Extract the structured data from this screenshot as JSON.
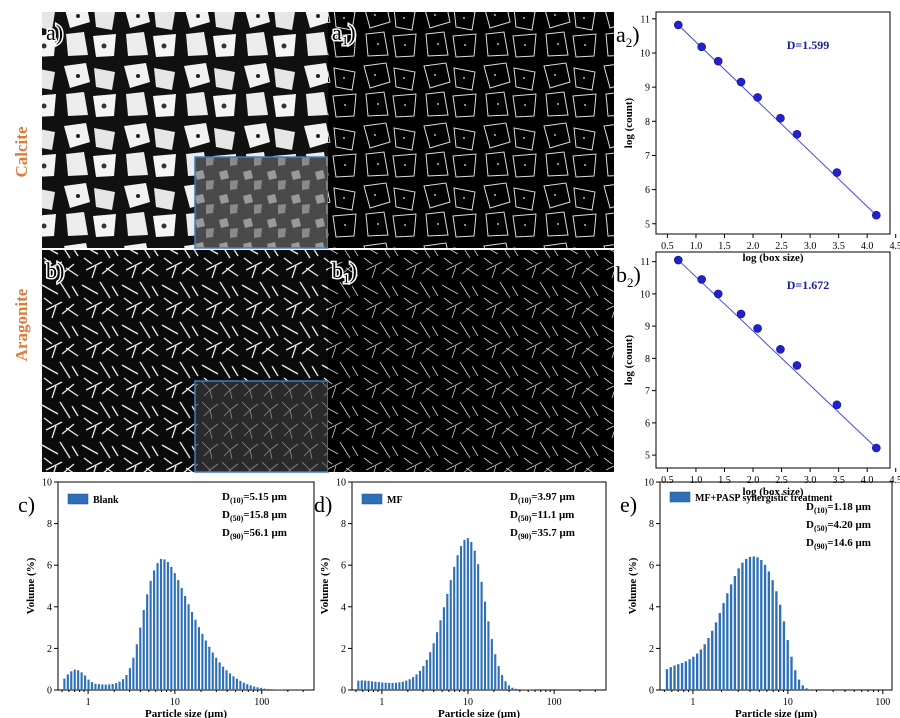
{
  "micrographs": {
    "row_labels": {
      "calcite": "Calcite",
      "aragonite": "Aragonite"
    },
    "panels": [
      {
        "id": "a",
        "letter": "a",
        "sub": ""
      },
      {
        "id": "a1",
        "letter": "a",
        "sub": "1"
      },
      {
        "id": "b",
        "letter": "b",
        "sub": ""
      },
      {
        "id": "b1",
        "letter": "b",
        "sub": "1"
      }
    ],
    "colors": {
      "row_label": "#e07b39",
      "inset_border": "#3b7fc4"
    }
  },
  "chart_data": [
    {
      "id": "a2",
      "type": "line",
      "panel_letter": "a",
      "panel_sub": "2",
      "x": [
        0.69,
        1.1,
        1.39,
        1.79,
        2.08,
        2.48,
        2.77,
        3.47,
        4.16
      ],
      "y": [
        10.82,
        10.18,
        9.76,
        9.15,
        8.7,
        8.09,
        7.62,
        6.5,
        5.25
      ],
      "xlim": [
        0.3,
        4.4
      ],
      "ylim": [
        4.7,
        11.2
      ],
      "xticks": [
        0.5,
        1.0,
        1.5,
        2.0,
        2.5,
        3.0,
        3.5,
        4.0,
        4.5
      ],
      "xtick_labels": [
        "0.5",
        "1.0",
        "1.5",
        "2.0",
        "2.5",
        "3.0",
        "3.5",
        "4.0",
        "4.5"
      ],
      "yticks": [
        5,
        6,
        7,
        8,
        9,
        10,
        11
      ],
      "xlabel": "log (box size)",
      "ylabel": "log (count)",
      "annotation": "D=1.599",
      "fit": [
        10.82,
        5.25
      ],
      "colors": {
        "marker": "#2222cc",
        "line": "#4a4adc",
        "annotation": "#1a1aa8"
      }
    },
    {
      "id": "b2",
      "type": "line",
      "panel_letter": "b",
      "panel_sub": "2",
      "x": [
        0.69,
        1.1,
        1.39,
        1.79,
        2.08,
        2.48,
        2.77,
        3.47,
        4.16
      ],
      "y": [
        11.05,
        10.45,
        10.0,
        9.38,
        8.93,
        8.28,
        7.78,
        6.56,
        5.22
      ],
      "xlim": [
        0.3,
        4.4
      ],
      "ylim": [
        4.6,
        11.3
      ],
      "xticks": [
        0.5,
        1.0,
        1.5,
        2.0,
        2.5,
        3.0,
        3.5,
        4.0,
        4.5
      ],
      "xtick_labels": [
        "0.5",
        "1.0",
        "1.5",
        "2.0",
        "2.5",
        "3.0",
        "3.5",
        "4.0",
        "4.5"
      ],
      "yticks": [
        5,
        6,
        7,
        8,
        9,
        10,
        11
      ],
      "xlabel": "log (box size)",
      "ylabel": "log (count)",
      "annotation": "D=1.672",
      "fit": [
        11.05,
        5.22
      ],
      "colors": {
        "marker": "#2222cc",
        "line": "#4a4adc",
        "annotation": "#1a1aa8"
      }
    },
    {
      "id": "c",
      "type": "bar",
      "panel_letter": "c",
      "legend": "Blank",
      "xscale": "log",
      "xlim": [
        0.45,
        400
      ],
      "ylim": [
        0,
        10
      ],
      "xticks": [
        1,
        10,
        100
      ],
      "xtick_labels": [
        "1",
        "10",
        "100"
      ],
      "yticks": [
        0,
        2,
        4,
        6,
        8,
        10
      ],
      "xlabel": "Particle size (μm)",
      "ylabel": "Volume (%)",
      "x": [
        0.533,
        0.584,
        0.64,
        0.701,
        0.768,
        0.842,
        0.923,
        1.011,
        1.108,
        1.214,
        1.33,
        1.458,
        1.597,
        1.751,
        1.919,
        2.103,
        2.304,
        2.525,
        2.767,
        3.032,
        3.323,
        3.641,
        3.99,
        4.373,
        4.792,
        5.251,
        5.754,
        6.306,
        6.91,
        7.572,
        8.298,
        9.094,
        9.965,
        10.92,
        11.97,
        13.11,
        14.37,
        15.75,
        17.26,
        18.91,
        20.72,
        22.71,
        24.89,
        27.27,
        29.89,
        32.75,
        35.89,
        39.33,
        43.1,
        47.23,
        51.76,
        56.72,
        62.16,
        68.11,
        74.64,
        81.8,
        89.64,
        98.23,
        107.6,
        118.0,
        129.3,
        141.7,
        155.3,
        170.1,
        186.4,
        204.3,
        223.9,
        245.3,
        268.9,
        294.6
      ],
      "values": [
        0.55,
        0.75,
        0.9,
        0.98,
        0.95,
        0.85,
        0.7,
        0.5,
        0.38,
        0.3,
        0.28,
        0.27,
        0.26,
        0.27,
        0.29,
        0.33,
        0.4,
        0.52,
        0.72,
        1.05,
        1.55,
        2.2,
        3.0,
        3.85,
        4.6,
        5.25,
        5.75,
        6.1,
        6.3,
        6.28,
        6.15,
        5.92,
        5.62,
        5.28,
        4.9,
        4.52,
        4.12,
        3.75,
        3.38,
        3.02,
        2.7,
        2.38,
        2.08,
        1.8,
        1.55,
        1.33,
        1.12,
        0.95,
        0.8,
        0.66,
        0.54,
        0.44,
        0.35,
        0.28,
        0.22,
        0.17,
        0.13,
        0.1,
        0.07,
        0.05,
        0.04,
        0.03,
        0.02,
        0.02,
        0.01,
        0.01,
        0.01,
        0.01,
        0.01,
        0.01
      ],
      "stats": [
        {
          "label": "D",
          "sub": "(10)",
          "val": "=5.15 μm"
        },
        {
          "label": "D",
          "sub": "(50)",
          "val": "=15.8 μm"
        },
        {
          "label": "D",
          "sub": "(90)",
          "val": "=56.1 μm"
        }
      ],
      "colors": {
        "bar": "#2e6fb5"
      }
    },
    {
      "id": "d",
      "type": "bar",
      "panel_letter": "d",
      "legend": "MF",
      "xscale": "log",
      "xlim": [
        0.45,
        400
      ],
      "ylim": [
        0,
        10
      ],
      "xticks": [
        1,
        10,
        100
      ],
      "xtick_labels": [
        "1",
        "10",
        "100"
      ],
      "yticks": [
        0,
        2,
        4,
        6,
        8,
        10
      ],
      "xlabel": "Particle size (μm)",
      "ylabel": "Volume (%)",
      "x": [
        0.533,
        0.584,
        0.64,
        0.701,
        0.768,
        0.842,
        0.923,
        1.011,
        1.108,
        1.214,
        1.33,
        1.458,
        1.597,
        1.751,
        1.919,
        2.103,
        2.304,
        2.525,
        2.767,
        3.032,
        3.323,
        3.641,
        3.99,
        4.373,
        4.792,
        5.251,
        5.754,
        6.306,
        6.91,
        7.572,
        8.298,
        9.094,
        9.965,
        10.92,
        11.97,
        13.11,
        14.37,
        15.75,
        17.26,
        18.91,
        20.72,
        22.71,
        24.89,
        27.27,
        29.89,
        32.75,
        35.89,
        39.33,
        43.1,
        47.23,
        51.76,
        56.72
      ],
      "values": [
        0.45,
        0.46,
        0.45,
        0.44,
        0.42,
        0.4,
        0.38,
        0.36,
        0.35,
        0.34,
        0.34,
        0.35,
        0.37,
        0.4,
        0.45,
        0.52,
        0.62,
        0.75,
        0.92,
        1.15,
        1.45,
        1.82,
        2.25,
        2.78,
        3.35,
        3.98,
        4.62,
        5.28,
        5.92,
        6.48,
        6.92,
        7.22,
        7.3,
        7.12,
        6.7,
        6.05,
        5.2,
        4.25,
        3.3,
        2.45,
        1.72,
        1.15,
        0.72,
        0.42,
        0.22,
        0.11,
        0.06,
        0.04,
        0.03,
        0.02,
        0.02,
        0.01
      ],
      "stats": [
        {
          "label": "D",
          "sub": "(10)",
          "val": "=3.97 μm"
        },
        {
          "label": "D",
          "sub": "(50)",
          "val": "=11.1 μm"
        },
        {
          "label": "D",
          "sub": "(90)",
          "val": "=35.7 μm"
        }
      ],
      "colors": {
        "bar": "#2e6fb5"
      }
    },
    {
      "id": "e",
      "type": "bar",
      "panel_letter": "e",
      "legend": "MF+PASP synergistic treatment",
      "xscale": "log",
      "xlim": [
        0.45,
        125
      ],
      "ylim": [
        0,
        10
      ],
      "xticks": [
        1,
        10,
        100
      ],
      "xtick_labels": [
        "1",
        "10",
        "100"
      ],
      "yticks": [
        0,
        2,
        4,
        6,
        8,
        10
      ],
      "xlabel": "Particle size (μm)",
      "ylabel": "Volume (%)",
      "x": [
        0.533,
        0.584,
        0.64,
        0.701,
        0.768,
        0.842,
        0.923,
        1.011,
        1.108,
        1.214,
        1.33,
        1.458,
        1.597,
        1.751,
        1.919,
        2.103,
        2.304,
        2.525,
        2.767,
        3.032,
        3.323,
        3.641,
        3.99,
        4.373,
        4.792,
        5.251,
        5.754,
        6.306,
        6.91,
        7.572,
        8.298,
        9.094,
        9.965,
        10.92,
        11.97,
        13.11,
        14.37,
        15.75,
        17.26,
        18.91
      ],
      "values": [
        1.0,
        1.1,
        1.18,
        1.24,
        1.3,
        1.38,
        1.48,
        1.6,
        1.75,
        1.95,
        2.2,
        2.5,
        2.85,
        3.25,
        3.7,
        4.18,
        4.65,
        5.08,
        5.48,
        5.85,
        6.12,
        6.3,
        6.4,
        6.42,
        6.38,
        6.25,
        6.02,
        5.7,
        5.28,
        4.75,
        4.1,
        3.3,
        2.4,
        1.6,
        0.95,
        0.5,
        0.22,
        0.08,
        0.03,
        0.01
      ],
      "stats": [
        {
          "label": "D",
          "sub": "(10)",
          "val": "=1.18 μm"
        },
        {
          "label": "D",
          "sub": "(50)",
          "val": "=4.20 μm"
        },
        {
          "label": "D",
          "sub": "(90)",
          "val": "=14.6 μm"
        }
      ],
      "colors": {
        "bar": "#2e6fb5"
      }
    }
  ]
}
